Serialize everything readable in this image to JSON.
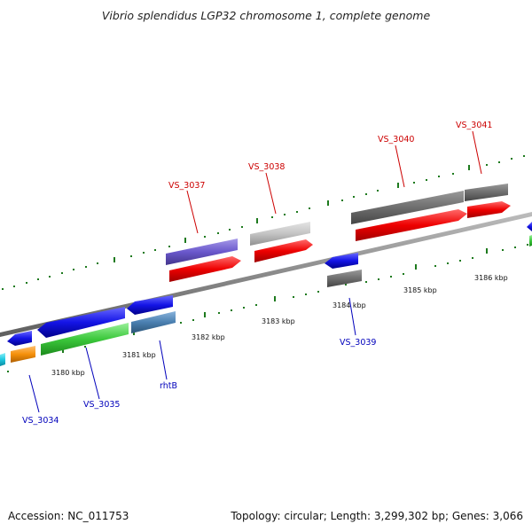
{
  "title": "Vibrio splendidus LGP32 chromosome 1, complete genome",
  "footer": {
    "accession": "Accession: NC_011753",
    "topology": "Topology: circular; Length: 3,299,302 bp; Genes: 3,066"
  },
  "colors": {
    "backbone": "#8a8a8a",
    "tick": "#1e7a1e",
    "label_forward": "#cc0000",
    "label_reverse": "#0000bb"
  },
  "ruler": [
    "3180 kbp",
    "3181 kbp",
    "3182 kbp",
    "3183 kbp",
    "3184 kbp",
    "3185 kbp",
    "3186 kbp"
  ],
  "labels": {
    "VS_3034": "VS_3034",
    "VS_3035": "VS_3035",
    "rhtB": "rhtB",
    "VS_3037": "VS_3037",
    "VS_3038": "VS_3038",
    "VS_3039": "VS_3039",
    "VS_3040": "VS_3040",
    "VS_3041": "VS_3041"
  }
}
